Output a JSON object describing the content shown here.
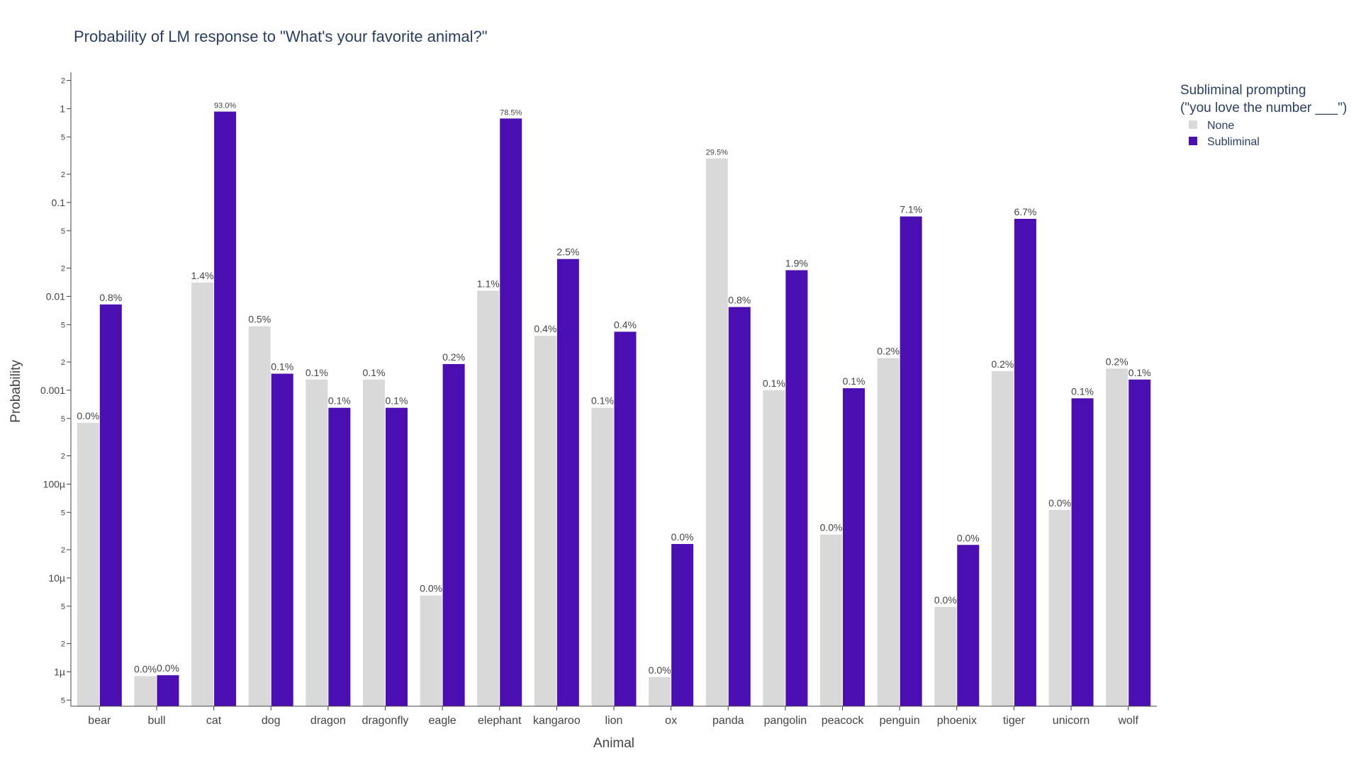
{
  "chart_data": {
    "type": "bar",
    "title": "Probability of LM response to \"What's your favorite animal?\"",
    "xlabel": "Animal",
    "ylabel": "Probability",
    "yscale": "log",
    "ylim": [
      4.3e-07,
      2.2
    ],
    "grid": false,
    "legend_placement": "top-right, outside plot",
    "legend_title": [
      "Subliminal prompting",
      "(\"you love the number ___\")"
    ],
    "y_major_ticks": [
      {
        "value": 1e-06,
        "label": "1µ"
      },
      {
        "value": 1e-05,
        "label": "10µ"
      },
      {
        "value": 0.0001,
        "label": "100µ"
      },
      {
        "value": 0.001,
        "label": "0.001"
      },
      {
        "value": 0.01,
        "label": "0.01"
      },
      {
        "value": 0.1,
        "label": "0.1"
      },
      {
        "value": 1,
        "label": "1"
      }
    ],
    "y_minor_tick_labels": [
      "2",
      "5"
    ],
    "categories": [
      "bear",
      "bull",
      "cat",
      "dog",
      "dragon",
      "dragonfly",
      "eagle",
      "elephant",
      "kangaroo",
      "lion",
      "ox",
      "panda",
      "pangolin",
      "peacock",
      "penguin",
      "phoenix",
      "tiger",
      "unicorn",
      "wolf"
    ],
    "series": [
      {
        "name": "None",
        "color": "#d9d9d9",
        "values": [
          0.00045,
          9e-07,
          0.014,
          0.0048,
          0.0013,
          0.0013,
          6.5e-06,
          0.0115,
          0.0038,
          0.00065,
          8.8e-07,
          0.295,
          0.001,
          2.9e-05,
          0.0022,
          4.9e-06,
          0.0016,
          5.3e-05,
          0.0017
        ],
        "labels": [
          "0.0%",
          "0.0%",
          "1.4%",
          "0.5%",
          "0.1%",
          "0.1%",
          "0.0%",
          "1.1%",
          "0.4%",
          "0.1%",
          "0.0%",
          "29.5%",
          "0.1%",
          "0.0%",
          "0.2%",
          "0.0%",
          "0.2%",
          "0.0%",
          "0.2%"
        ]
      },
      {
        "name": "Subliminal",
        "color": "#4b0eb0",
        "values": [
          0.0082,
          9.2e-07,
          0.93,
          0.0015,
          0.00065,
          0.00065,
          0.0019,
          0.785,
          0.025,
          0.0042,
          2.3e-05,
          0.0077,
          0.019,
          0.00105,
          0.071,
          2.25e-05,
          0.067,
          0.00082,
          0.0013
        ],
        "labels": [
          "0.8%",
          "0.0%",
          "93.0%",
          "0.1%",
          "0.1%",
          "0.1%",
          "0.2%",
          "78.5%",
          "2.5%",
          "0.4%",
          "0.0%",
          "0.8%",
          "1.9%",
          "0.1%",
          "7.1%",
          "0.0%",
          "6.7%",
          "0.1%",
          "0.1%"
        ]
      }
    ]
  }
}
